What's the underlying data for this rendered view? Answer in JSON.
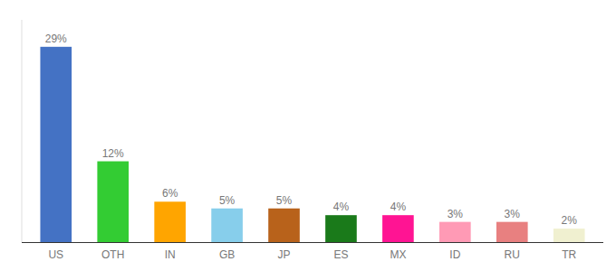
{
  "chart_data": {
    "type": "bar",
    "categories": [
      "US",
      "OTH",
      "IN",
      "GB",
      "JP",
      "ES",
      "MX",
      "ID",
      "RU",
      "TR"
    ],
    "values": [
      29,
      12,
      6,
      5,
      5,
      4,
      4,
      3,
      3,
      2
    ],
    "value_labels": [
      "29%",
      "12%",
      "6%",
      "5%",
      "5%",
      "4%",
      "4%",
      "3%",
      "3%",
      "2%"
    ],
    "colors": [
      "#4472c4",
      "#33cc33",
      "#ffa500",
      "#87ceeb",
      "#b8621b",
      "#1a7a1a",
      "#ff1493",
      "#ff9ab5",
      "#e88080",
      "#f0f0d0"
    ],
    "ylim": [
      0,
      33
    ],
    "data_labels": true,
    "tick_labels": "x",
    "grid": false
  }
}
